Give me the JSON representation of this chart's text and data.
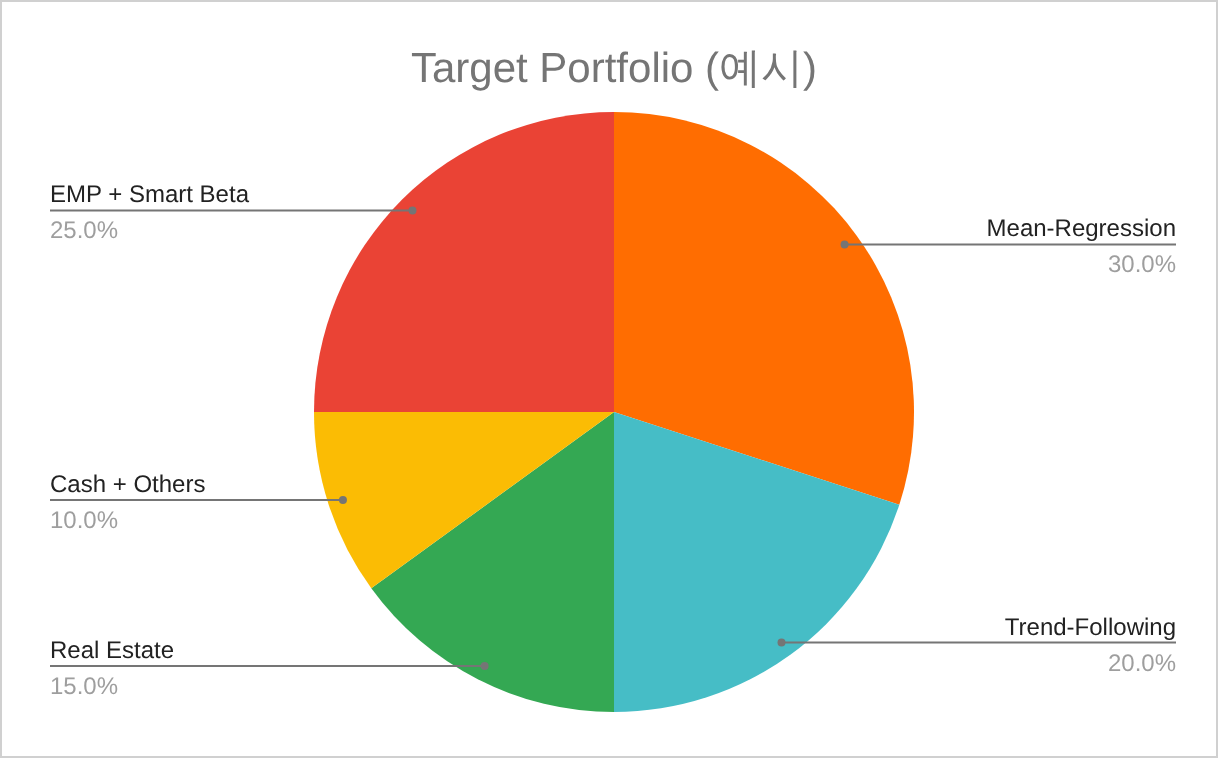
{
  "chart_data": {
    "type": "pie",
    "title": "Target Portfolio (예시)",
    "categories": [
      "Mean-Regression",
      "Trend-Following",
      "Real Estate",
      "Cash + Others",
      "EMP + Smart Beta"
    ],
    "values": [
      30,
      20,
      15,
      10,
      25
    ],
    "value_labels": [
      "30.0%",
      "20.0%",
      "15.0%",
      "10.0%",
      "25.0%"
    ],
    "colors": [
      "#ff6d01",
      "#46bdc6",
      "#34a853",
      "#fbbc04",
      "#ea4335"
    ]
  }
}
